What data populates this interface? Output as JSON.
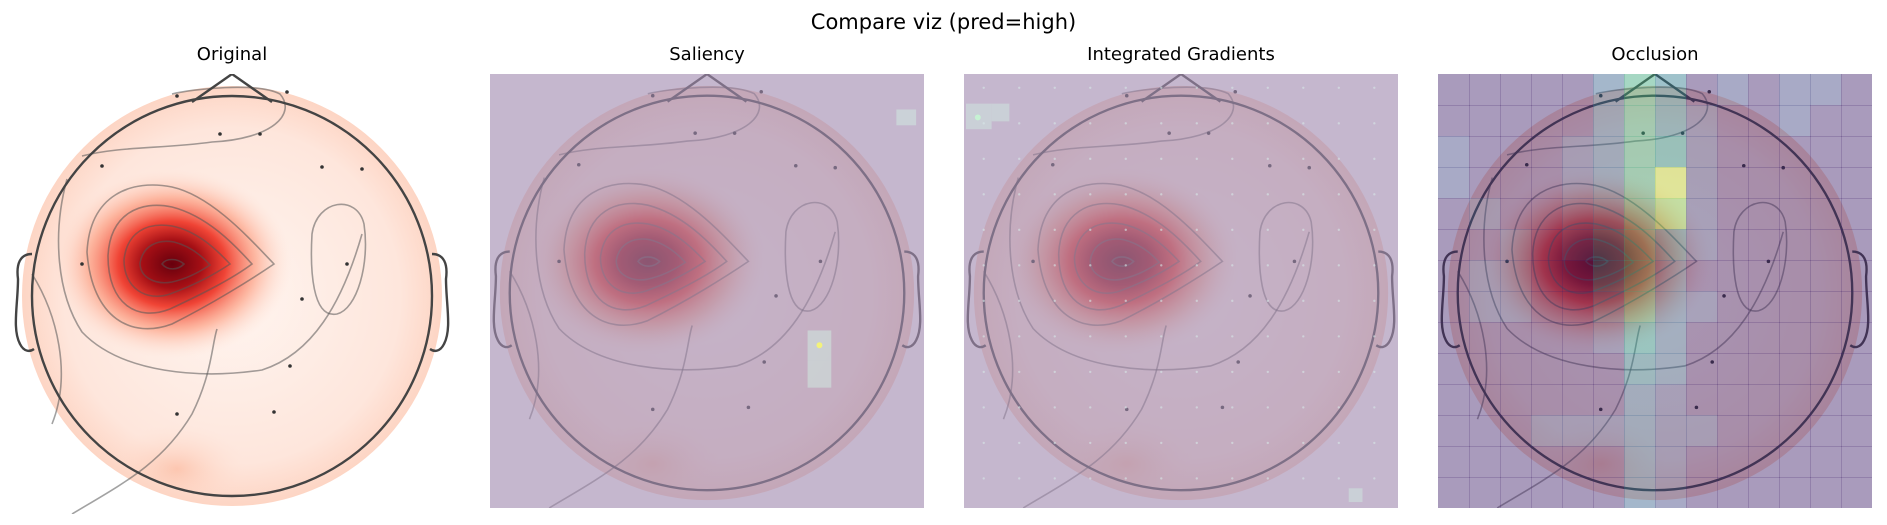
{
  "figure": {
    "title": "Compare viz (pred=high)"
  },
  "chart_data": [
    {
      "type": "heatmap",
      "title": "Original",
      "description_values": {
        "peak_region": "left-frontal"
      }
    },
    {
      "type": "heatmap",
      "title": "Saliency"
    },
    {
      "type": "heatmap",
      "title": "Integrated Gradients"
    },
    {
      "type": "heatmap",
      "title": "Occlusion",
      "colormap": "viridis",
      "grid": [
        [
          0.1,
          0.1,
          0.1,
          0.1,
          0.1,
          0.3,
          0.6,
          0.4,
          0.1,
          0.2,
          0.1,
          0.2,
          0.2,
          0.1
        ],
        [
          0.1,
          0.1,
          0.1,
          0.1,
          0.1,
          0.3,
          0.6,
          0.4,
          0.2,
          0.1,
          0.1,
          0.2,
          0.1,
          0.1
        ],
        [
          0.2,
          0.1,
          0.1,
          0.1,
          0.2,
          0.3,
          0.6,
          0.5,
          0.2,
          0.1,
          0.1,
          0.1,
          0.1,
          0.1
        ],
        [
          0.2,
          0.1,
          0.1,
          0.1,
          0.2,
          0.3,
          0.6,
          0.9,
          0.2,
          0.1,
          0.1,
          0.1,
          0.1,
          0.1
        ],
        [
          0.1,
          0.2,
          0.1,
          0.1,
          0.2,
          0.3,
          0.6,
          0.8,
          0.2,
          0.1,
          0.1,
          0.1,
          0.1,
          0.1
        ],
        [
          0.1,
          0.1,
          0.2,
          0.1,
          0.2,
          0.4,
          0.6,
          0.4,
          0.2,
          0.1,
          0.1,
          0.1,
          0.1,
          0.1
        ],
        [
          0.1,
          0.2,
          0.2,
          0.1,
          0.1,
          0.4,
          0.6,
          0.3,
          0.1,
          0.1,
          0.1,
          0.1,
          0.1,
          0.1
        ],
        [
          0.1,
          0.2,
          0.2,
          0.1,
          0.1,
          0.3,
          0.6,
          0.3,
          0.2,
          0.1,
          0.1,
          0.1,
          0.1,
          0.1
        ],
        [
          0.1,
          0.1,
          0.1,
          0.1,
          0.1,
          0.2,
          0.5,
          0.3,
          0.1,
          0.1,
          0.1,
          0.1,
          0.1,
          0.1
        ],
        [
          0.1,
          0.1,
          0.1,
          0.1,
          0.1,
          0.1,
          0.4,
          0.3,
          0.1,
          0.1,
          0.1,
          0.1,
          0.1,
          0.1
        ],
        [
          0.1,
          0.1,
          0.1,
          0.1,
          0.1,
          0.1,
          0.3,
          0.2,
          0.1,
          0.1,
          0.1,
          0.1,
          0.1,
          0.1
        ],
        [
          0.1,
          0.1,
          0.1,
          0.2,
          0.2,
          0.2,
          0.3,
          0.2,
          0.2,
          0.1,
          0.1,
          0.1,
          0.1,
          0.1
        ],
        [
          0.1,
          0.1,
          0.1,
          0.1,
          0.1,
          0.1,
          0.3,
          0.2,
          0.1,
          0.1,
          0.1,
          0.1,
          0.1,
          0.1
        ],
        [
          0.1,
          0.1,
          0.1,
          0.1,
          0.1,
          0.1,
          0.3,
          0.2,
          0.1,
          0.1,
          0.1,
          0.1,
          0.1,
          0.1
        ]
      ]
    }
  ],
  "colors": {
    "overlay": "#a18ab0",
    "head_line": "#444444",
    "peak": "#67000d"
  }
}
